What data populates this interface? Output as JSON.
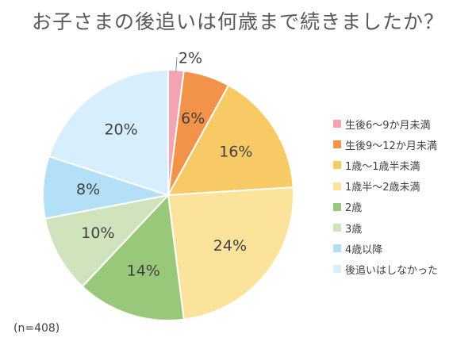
{
  "title": "お子さまの後追いは何歳まで続きましたか？",
  "note": "(n=408)",
  "chart_data": {
    "type": "pie",
    "title": "お子さまの後追いは何歳まで続きましたか？",
    "slices": [
      {
        "label": "生後6〜9か月未満",
        "value": 2,
        "display": "2%",
        "color": "#f4a3b0"
      },
      {
        "label": "生後9〜12か月未満",
        "value": 6,
        "display": "6%",
        "color": "#f3934a"
      },
      {
        "label": "1歳〜1歳半未満",
        "value": 16,
        "display": "16%",
        "color": "#f7ca66"
      },
      {
        "label": "1歳半〜2歳未満",
        "value": 24,
        "display": "24%",
        "color": "#fbe39c"
      },
      {
        "label": "2歳",
        "value": 14,
        "display": "14%",
        "color": "#98c97a"
      },
      {
        "label": "3歳",
        "value": 10,
        "display": "10%",
        "color": "#cfe4bd"
      },
      {
        "label": "4歳以降",
        "value": 8,
        "display": "8%",
        "color": "#b3e0f7"
      },
      {
        "label": "後追いはしなかった",
        "value": 20,
        "display": "20%",
        "color": "#d7eefc"
      }
    ],
    "legend_position": "right",
    "start_angle": "12 o'clock",
    "direction": "clockwise",
    "note": "(n=408)"
  }
}
